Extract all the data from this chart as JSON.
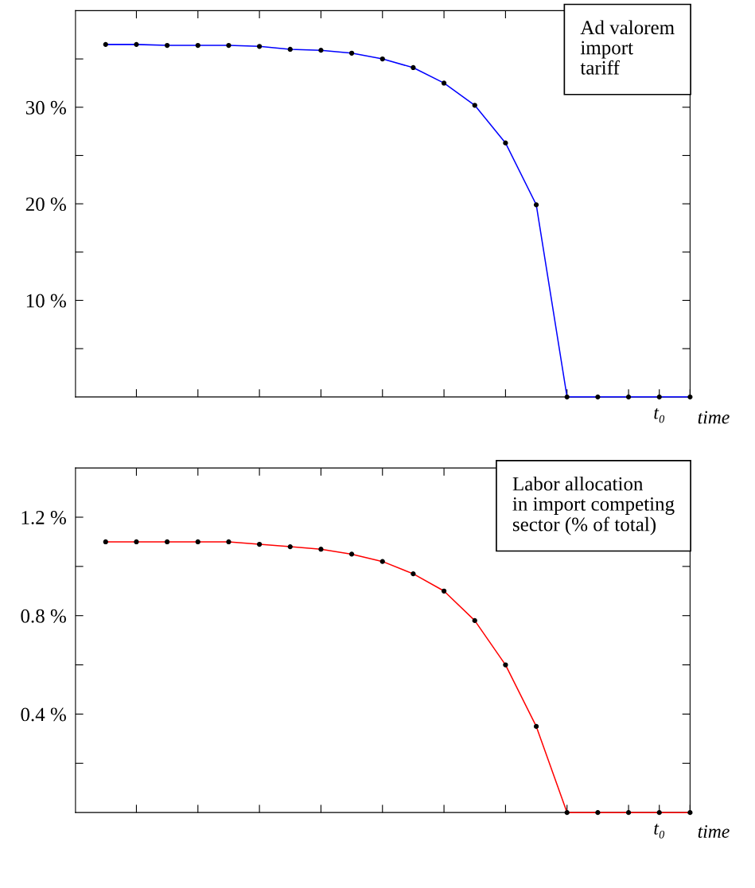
{
  "chart_data": [
    {
      "type": "line",
      "categories": [
        null,
        null,
        null,
        null,
        null,
        null,
        null,
        null,
        null,
        null,
        null,
        null,
        null,
        null,
        null,
        null,
        null,
        null,
        "t₀",
        null
      ],
      "xlabel": "time",
      "annotations": [
        "Ad valorem\nimport\ntariff"
      ],
      "series": [
        {
          "color": "#0000ff",
          "values": [
            36.5,
            36.5,
            36.4,
            36.4,
            36.4,
            36.3,
            36.0,
            35.9,
            35.6,
            35.0,
            34.1,
            32.5,
            30.2,
            26.3,
            19.9,
            0,
            0,
            0,
            0,
            0
          ]
        }
      ],
      "marker": "circle",
      "line_style": "solid",
      "grid": false,
      "ylim": [
        0,
        40
      ],
      "yticks": [
        {
          "value": 5,
          "label": null
        },
        {
          "value": 10,
          "label": "10 %"
        },
        {
          "value": 15,
          "label": null
        },
        {
          "value": 20,
          "label": "20 %"
        },
        {
          "value": 25,
          "label": null
        },
        {
          "value": 30,
          "label": "30 %"
        },
        {
          "value": 35,
          "label": null
        }
      ]
    },
    {
      "type": "line",
      "categories": [
        null,
        null,
        null,
        null,
        null,
        null,
        null,
        null,
        null,
        null,
        null,
        null,
        null,
        null,
        null,
        null,
        null,
        null,
        "t₀",
        null
      ],
      "xlabel": "time",
      "annotations": [
        "Labor allocation\nin import competing\nsector (% of total)"
      ],
      "series": [
        {
          "color": "#ff0000",
          "values": [
            1.1,
            1.1,
            1.1,
            1.1,
            1.1,
            1.09,
            1.08,
            1.07,
            1.05,
            1.02,
            0.97,
            0.9,
            0.78,
            0.6,
            0.35,
            0,
            0,
            0,
            0,
            0
          ]
        }
      ],
      "marker": "circle",
      "line_style": "solid",
      "grid": false,
      "ylim": [
        0,
        1.4
      ],
      "yticks": [
        {
          "value": 0.2,
          "label": null
        },
        {
          "value": 0.4,
          "label": "0.4 %"
        },
        {
          "value": 0.6,
          "label": null
        },
        {
          "value": 0.8,
          "label": "0.8 %"
        },
        {
          "value": 1.0,
          "label": null
        },
        {
          "value": 1.2,
          "label": "1.2 %"
        }
      ]
    }
  ]
}
